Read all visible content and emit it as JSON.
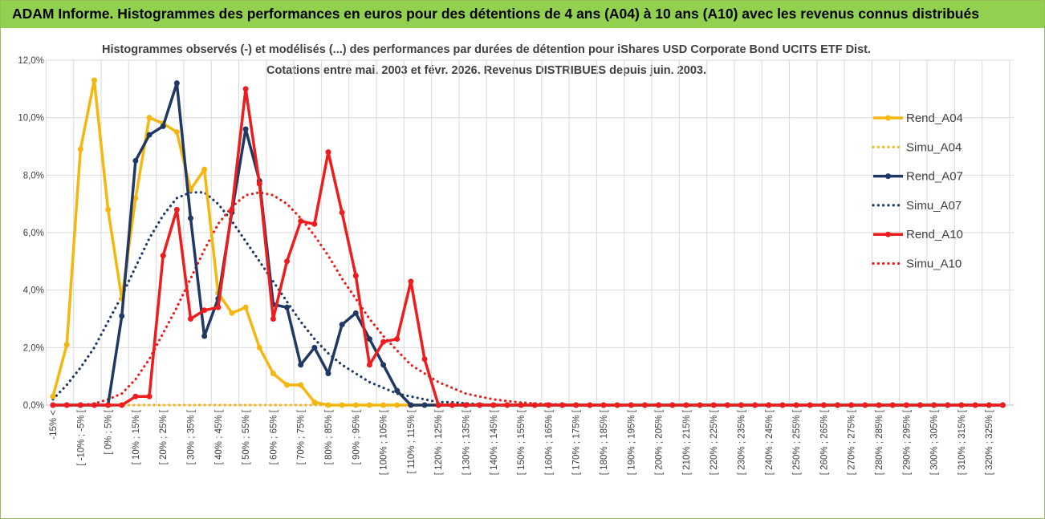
{
  "header": {
    "title": "ADAM Informe. Histogrammes des performances en euros pour des détentions de 4 ans (A04) à 10 ans (A10) avec les revenus connus distribués"
  },
  "chart_data": {
    "type": "line",
    "title": "Histogrammes observés (-) et modélisés (...) des performances par durées de détention pour iShares USD Corporate Bond UCITS ETF Dist.",
    "subtitle": "Cotations entre mai. 2003 et févr. 2026. Revenus DISTRIBUES depuis juin. 2003.",
    "xlabel": "",
    "ylabel": "",
    "ylim": [
      0,
      0.12
    ],
    "yticks": [
      "0,0%",
      "2,0%",
      "4,0%",
      "6,0%",
      "8,0%",
      "10,0%",
      "12,0%"
    ],
    "grid": true,
    "legend_position": "right",
    "categories": [
      "-15% <",
      "",
      "[ -10% ; -5% [",
      "",
      "[ 0% ; 5% [",
      "",
      "[ 10% ; 15% [",
      "",
      "[ 20% ; 25% [",
      "",
      "[ 30% ; 35% [",
      "",
      "[ 40% ; 45% [",
      "",
      "[ 50% ; 55% [",
      "",
      "[ 60% ; 65% [",
      "",
      "[ 70% ; 75% [",
      "",
      "[ 80% ; 85% [",
      "",
      "[ 90% ; 95% [",
      "",
      "[ 100% ; 105% [",
      "",
      "[ 110% ; 115% [",
      "",
      "[ 120% ; 125% [",
      "",
      "[ 130% ; 135% [",
      "",
      "[ 140% ; 145% [",
      "",
      "[ 150% ; 155% [",
      "",
      "[ 160% ; 165% [",
      "",
      "[ 170% ; 175% [",
      "",
      "[ 180% ; 185% [",
      "",
      "[ 190% ; 195% [",
      "",
      "[ 200% ; 205% [",
      "",
      "[ 210% ; 215% [",
      "",
      "[ 220% ; 225% [",
      "",
      "[ 230% ; 235% [",
      "",
      "[ 240% ; 245% [",
      "",
      "[ 250% ; 255% [",
      "",
      "[ 260% ; 265% [",
      "",
      "[ 270% ; 275% [",
      "",
      "[ 280% ; 285% [",
      "",
      "[ 290% ; 295% [",
      "",
      "[ 300% ; 305% [",
      "",
      "[ 310% ; 315% [",
      "",
      "[ 320% ; 325% [",
      ""
    ],
    "series": [
      {
        "name": "Rend_A04",
        "color": "#f5b70f",
        "dashed": false,
        "markers": true,
        "values": [
          0.003,
          0.021,
          0.089,
          0.113,
          0.068,
          0.037,
          0.072,
          0.1,
          0.098,
          0.095,
          0.075,
          0.082,
          0.039,
          0.032,
          0.034,
          0.02,
          0.011,
          0.007,
          0.007,
          0.001,
          0,
          0,
          0,
          0,
          0,
          0,
          0,
          0,
          0,
          0,
          0,
          0,
          0,
          0,
          0,
          0,
          0,
          0,
          0,
          0,
          0,
          0,
          0,
          0,
          0,
          0,
          0,
          0,
          0,
          0,
          0,
          0,
          0,
          0,
          0,
          0,
          0,
          0,
          0,
          0,
          0,
          0,
          0,
          0,
          0,
          0,
          0,
          0,
          0,
          0
        ]
      },
      {
        "name": "Simu_A04",
        "color": "#f5b70f",
        "dashed": true,
        "markers": false,
        "values": [
          0,
          0,
          0,
          0,
          0,
          0,
          0,
          0,
          0,
          0,
          0,
          0,
          0,
          0,
          0,
          0,
          0,
          0,
          0,
          0,
          0,
          0,
          0,
          0,
          0,
          0,
          0,
          0,
          0,
          0,
          0,
          0,
          0,
          0,
          0,
          0,
          0,
          0,
          0,
          0,
          0,
          0,
          0,
          0,
          0,
          0,
          0,
          0,
          0,
          0,
          0,
          0,
          0,
          0,
          0,
          0,
          0,
          0,
          0,
          0,
          0,
          0,
          0,
          0,
          0,
          0,
          0,
          0,
          0,
          0
        ]
      },
      {
        "name": "Rend_A07",
        "color": "#1f3864",
        "dashed": false,
        "markers": true,
        "values": [
          0,
          0,
          0,
          0,
          0,
          0.031,
          0.085,
          0.094,
          0.097,
          0.112,
          0.065,
          0.024,
          0.037,
          0.067,
          0.096,
          0.078,
          0.035,
          0.034,
          0.014,
          0.02,
          0.011,
          0.028,
          0.032,
          0.023,
          0.014,
          0.005,
          0,
          0,
          0,
          0,
          0,
          0,
          0,
          0,
          0,
          0,
          0,
          0,
          0,
          0,
          0,
          0,
          0,
          0,
          0,
          0,
          0,
          0,
          0,
          0,
          0,
          0,
          0,
          0,
          0,
          0,
          0,
          0,
          0,
          0,
          0,
          0,
          0,
          0,
          0,
          0,
          0,
          0,
          0,
          0
        ]
      },
      {
        "name": "Simu_A07",
        "color": "#1f3864",
        "dashed": true,
        "markers": false,
        "values": [
          0.002,
          0.007,
          0.013,
          0.02,
          0.029,
          0.038,
          0.048,
          0.058,
          0.066,
          0.072,
          0.074,
          0.074,
          0.07,
          0.064,
          0.057,
          0.05,
          0.043,
          0.036,
          0.029,
          0.023,
          0.018,
          0.014,
          0.011,
          0.008,
          0.006,
          0.004,
          0.003,
          0.002,
          0.001,
          0.001,
          0.0006,
          0.0003,
          0,
          0,
          0,
          0,
          0,
          0,
          0,
          0,
          0,
          0,
          0,
          0,
          0,
          0,
          0,
          0,
          0,
          0,
          0,
          0,
          0,
          0,
          0,
          0,
          0,
          0,
          0,
          0,
          0,
          0,
          0,
          0,
          0,
          0,
          0,
          0,
          0,
          0
        ]
      },
      {
        "name": "Rend_A10",
        "color": "#ee1c1c",
        "dashed": false,
        "markers": true,
        "values": [
          0,
          0,
          0,
          0,
          0,
          0,
          0.003,
          0.003,
          0.052,
          0.068,
          0.03,
          0.033,
          0.034,
          0.068,
          0.11,
          0.077,
          0.03,
          0.05,
          0.064,
          0.063,
          0.088,
          0.067,
          0.045,
          0.014,
          0.022,
          0.023,
          0.043,
          0.016,
          0,
          0,
          0,
          0,
          0,
          0,
          0,
          0,
          0,
          0,
          0,
          0,
          0,
          0,
          0,
          0,
          0,
          0,
          0,
          0,
          0,
          0,
          0,
          0,
          0,
          0,
          0,
          0,
          0,
          0,
          0,
          0,
          0,
          0,
          0,
          0,
          0,
          0,
          0,
          0,
          0,
          0
        ]
      },
      {
        "name": "Simu_A10",
        "color": "#ee1c1c",
        "dashed": true,
        "markers": false,
        "values": [
          0,
          0,
          0,
          0.0005,
          0.002,
          0.004,
          0.009,
          0.016,
          0.025,
          0.034,
          0.044,
          0.054,
          0.063,
          0.069,
          0.073,
          0.074,
          0.073,
          0.07,
          0.065,
          0.059,
          0.052,
          0.044,
          0.037,
          0.03,
          0.024,
          0.019,
          0.014,
          0.011,
          0.008,
          0.006,
          0.004,
          0.003,
          0.002,
          0.0014,
          0.0009,
          0.0006,
          0.0004,
          0.0002,
          0.0001,
          0,
          0,
          0,
          0,
          0,
          0,
          0,
          0,
          0,
          0,
          0,
          0,
          0,
          0,
          0,
          0,
          0,
          0,
          0,
          0,
          0,
          0,
          0,
          0,
          0,
          0,
          0,
          0,
          0,
          0,
          0
        ]
      }
    ]
  }
}
